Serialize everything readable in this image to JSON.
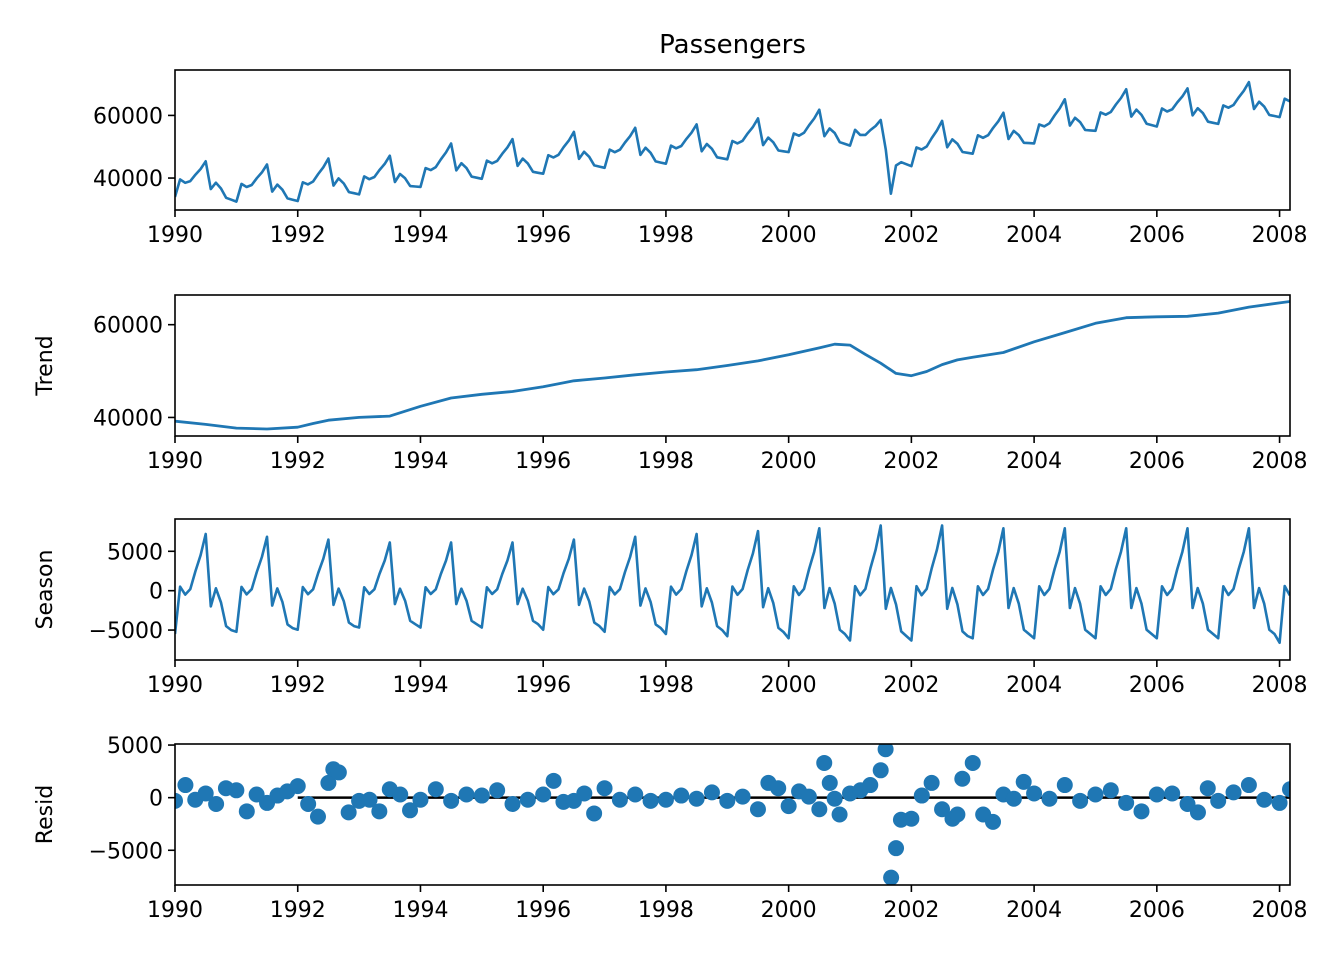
{
  "chart_data": [
    {
      "panel": "observed",
      "type": "line",
      "title": "Passengers",
      "ylabel": "",
      "xlim": [
        1990.0,
        2008.17
      ],
      "ylim": [
        29800,
        74500
      ],
      "xticks": [
        1990,
        1992,
        1994,
        1996,
        1998,
        2000,
        2002,
        2004,
        2006,
        2008
      ],
      "xtick_labels": [
        "1990",
        "1992",
        "1994",
        "1996",
        "1998",
        "2000",
        "2002",
        "2004",
        "2006",
        "2008"
      ],
      "yticks": [
        40000,
        60000
      ],
      "ytick_labels": [
        "40000",
        "60000"
      ],
      "color": "#1f77b4",
      "x": [
        1990.0,
        1992.0,
        1994.0,
        1996.0,
        1998.0,
        2000.0,
        2001.5,
        2001.67,
        2001.75,
        2002.0,
        2004.0,
        2006.0,
        2007.5,
        2008.0,
        2008.17
      ],
      "y": [
        35000,
        35500,
        42500,
        47500,
        53000,
        54500,
        62500,
        63000,
        35000,
        44000,
        56500,
        60000,
        72000,
        58000,
        67500
      ]
    },
    {
      "panel": "trend",
      "type": "line",
      "title": "",
      "ylabel": "Trend",
      "xlim": [
        1990.0,
        2008.17
      ],
      "ylim": [
        36000,
        66400
      ],
      "xticks": [
        1990,
        1992,
        1994,
        1996,
        1998,
        2000,
        2002,
        2004,
        2006,
        2008
      ],
      "xtick_labels": [
        "1990",
        "1992",
        "1994",
        "1996",
        "1998",
        "2000",
        "2002",
        "2004",
        "2006",
        "2008"
      ],
      "yticks": [
        40000,
        60000
      ],
      "ytick_labels": [
        "40000",
        "60000"
      ],
      "color": "#1f77b4",
      "x": [
        1990.0,
        1990.5,
        1991.0,
        1991.5,
        1992.0,
        1992.25,
        1992.5,
        1993.0,
        1993.5,
        1994.0,
        1994.5,
        1995.0,
        1995.5,
        1996.0,
        1996.5,
        1997.0,
        1997.5,
        1998.0,
        1998.5,
        1999.0,
        1999.5,
        2000.0,
        2000.5,
        2000.75,
        2001.0,
        2001.25,
        2001.5,
        2001.75,
        2002.0,
        2002.25,
        2002.5,
        2002.75,
        2003.0,
        2003.5,
        2004.0,
        2004.5,
        2005.0,
        2005.5,
        2006.0,
        2006.5,
        2007.0,
        2007.5,
        2008.0,
        2008.17
      ],
      "y": [
        39200,
        38500,
        37700,
        37500,
        37900,
        38700,
        39400,
        40000,
        40300,
        42400,
        44200,
        45000,
        45600,
        46600,
        47900,
        48500,
        49200,
        49800,
        50300,
        51200,
        52200,
        53500,
        55000,
        55800,
        55600,
        53600,
        51700,
        49500,
        49000,
        49900,
        51400,
        52400,
        53000,
        54000,
        56300,
        58300,
        60300,
        61500,
        61700,
        61800,
        62500,
        63800,
        64700,
        65000
      ]
    },
    {
      "panel": "seasonal",
      "type": "line",
      "title": "",
      "ylabel": "Season",
      "xlim": [
        1990.0,
        2008.17
      ],
      "ylim": [
        -8800,
        9100
      ],
      "xticks": [
        1990,
        1992,
        1994,
        1996,
        1998,
        2000,
        2002,
        2004,
        2006,
        2008
      ],
      "xtick_labels": [
        "1990",
        "1992",
        "1994",
        "1996",
        "1998",
        "2000",
        "2002",
        "2004",
        "2006",
        "2008"
      ],
      "yticks": [
        -5000,
        0,
        5000
      ],
      "ytick_labels": [
        "−5000",
        "0",
        "5000"
      ],
      "color": "#1f77b4",
      "pattern_months": [
        -5500,
        500,
        -500,
        200,
        2500,
        4500,
        7200,
        -2000,
        300,
        -1500,
        -4500,
        -5000
      ],
      "amplitude_scale": [
        1.0,
        0.95,
        0.9,
        0.85,
        0.85,
        0.85,
        0.9,
        0.95,
        1.0,
        1.05,
        1.1,
        1.15,
        1.15,
        1.1,
        1.1,
        1.1,
        1.1,
        1.1,
        1.2
      ]
    },
    {
      "panel": "resid",
      "type": "scatter",
      "title": "",
      "ylabel": "Resid",
      "xlim": [
        1990.0,
        2008.17
      ],
      "ylim": [
        -8300,
        5100
      ],
      "xticks": [
        1990,
        1992,
        1994,
        1996,
        1998,
        2000,
        2002,
        2004,
        2006,
        2008
      ],
      "xtick_labels": [
        "1990",
        "1992",
        "1994",
        "1996",
        "1998",
        "2000",
        "2002",
        "2004",
        "2006",
        "2008"
      ],
      "yticks": [
        -5000,
        0,
        5000
      ],
      "ytick_labels": [
        "−5000",
        "0",
        "5000"
      ],
      "color": "#1f77b4",
      "x": [
        1990.0,
        1990.17,
        1990.33,
        1990.5,
        1990.67,
        1990.83,
        1991.0,
        1991.17,
        1991.33,
        1991.5,
        1991.67,
        1991.83,
        1992.0,
        1992.17,
        1992.33,
        1992.5,
        1992.58,
        1992.67,
        1992.83,
        1993.0,
        1993.17,
        1993.33,
        1993.5,
        1993.67,
        1993.83,
        1994.0,
        1994.25,
        1994.5,
        1994.75,
        1995.0,
        1995.25,
        1995.5,
        1995.75,
        1996.0,
        1996.17,
        1996.33,
        1996.5,
        1996.67,
        1996.83,
        1997.0,
        1997.25,
        1997.5,
        1997.75,
        1998.0,
        1998.25,
        1998.5,
        1998.75,
        1999.0,
        1999.25,
        1999.5,
        1999.67,
        1999.83,
        2000.0,
        2000.17,
        2000.33,
        2000.5,
        2000.58,
        2000.67,
        2000.75,
        2000.83,
        2001.0,
        2001.17,
        2001.33,
        2001.5,
        2001.58,
        2001.67,
        2001.75,
        2001.83,
        2002.0,
        2002.17,
        2002.33,
        2002.5,
        2002.67,
        2002.75,
        2002.83,
        2003.0,
        2003.17,
        2003.33,
        2003.5,
        2003.67,
        2003.83,
        2004.0,
        2004.25,
        2004.5,
        2004.75,
        2005.0,
        2005.25,
        2005.5,
        2005.75,
        2006.0,
        2006.25,
        2006.5,
        2006.67,
        2006.83,
        2007.0,
        2007.25,
        2007.5,
        2007.75,
        2008.0,
        2008.17
      ],
      "y": [
        -300,
        1200,
        -200,
        400,
        -600,
        900,
        700,
        -1300,
        300,
        -500,
        200,
        600,
        1100,
        -600,
        -1800,
        1400,
        2700,
        2400,
        -1400,
        -300,
        -200,
        -1300,
        800,
        300,
        -1200,
        -200,
        800,
        -300,
        300,
        200,
        700,
        -600,
        -200,
        300,
        1600,
        -400,
        -300,
        400,
        -1500,
        900,
        -200,
        300,
        -300,
        -200,
        200,
        -100,
        500,
        -300,
        100,
        -1100,
        1400,
        900,
        -800,
        600,
        100,
        -1100,
        3300,
        1400,
        -100,
        -1600,
        400,
        700,
        1200,
        2600,
        4600,
        -7600,
        -4800,
        -2100,
        -2000,
        200,
        1400,
        -1100,
        -2000,
        -1600,
        1800,
        3300,
        -1600,
        -2300,
        300,
        -100,
        1500,
        400,
        -100,
        1200,
        -300,
        300,
        700,
        -500,
        -1300,
        300,
        400,
        -600,
        -1400,
        900,
        -300,
        500,
        1200,
        -200,
        -500,
        800
      ]
    }
  ]
}
